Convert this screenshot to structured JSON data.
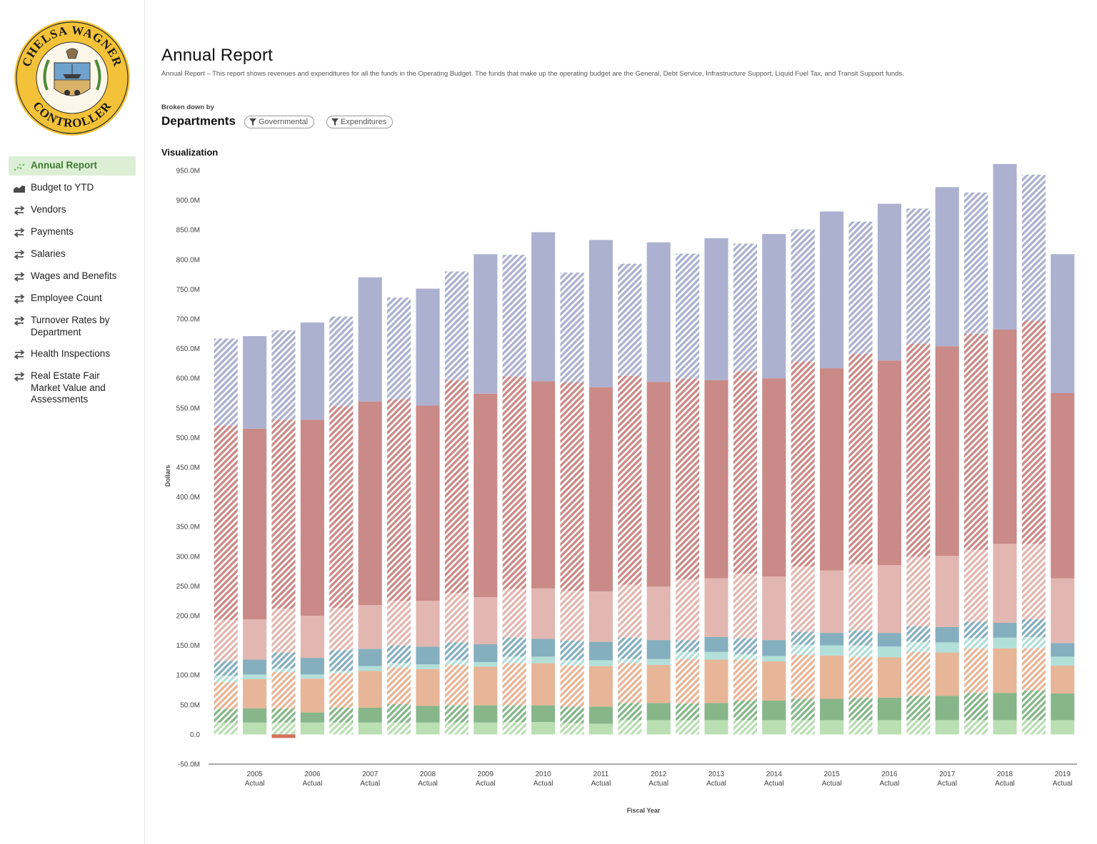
{
  "logo": {
    "top_text": "CHELSA WAGNER",
    "bottom_text": "CONTROLLER"
  },
  "nav": {
    "items": [
      {
        "label": "Annual Report",
        "icon": "scatter-dots-icon",
        "active": true
      },
      {
        "label": "Budget to YTD",
        "icon": "area-chart-icon",
        "active": false
      },
      {
        "label": "Vendors",
        "icon": "swap-arrows-icon",
        "active": false
      },
      {
        "label": "Payments",
        "icon": "swap-arrows-icon",
        "active": false
      },
      {
        "label": "Salaries",
        "icon": "swap-arrows-icon",
        "active": false
      },
      {
        "label": "Wages and Benefits",
        "icon": "swap-arrows-icon",
        "active": false
      },
      {
        "label": "Employee Count",
        "icon": "swap-arrows-icon",
        "active": false
      },
      {
        "label": "Turnover Rates by Department",
        "icon": "swap-arrows-icon",
        "active": false
      },
      {
        "label": "Health Inspections",
        "icon": "swap-arrows-icon",
        "active": false
      },
      {
        "label": "Real Estate Fair Market Value and Assessments",
        "icon": "swap-arrows-icon",
        "active": false
      }
    ]
  },
  "page": {
    "title": "Annual Report",
    "description": "Annual Report – This report shows revenues and expenditures for all the funds in the Operating Budget. The funds that make up the operating budget are the General, Debt Service, Infrastructure Support, Liquid Fuel Tax, and Transit Support funds.",
    "broken_down_label": "Broken down by",
    "breakdown": "Departments",
    "filters": [
      "Governmental",
      "Expenditures"
    ],
    "viz_label": "Visualization"
  },
  "colors": {
    "lightgreen": "#b9dfb2",
    "darkgreen": "#86b689",
    "peach": "#e7b597",
    "lightteal": "#b3dfd9",
    "teal": "#85afbf",
    "pink": "#e2b7b1",
    "red": "#c98a88",
    "slate": "#adb1d0",
    "accent_red": "#d4715a"
  },
  "chart_data": {
    "type": "bar",
    "stacked": true,
    "title": "Visualization",
    "xlabel": "Fiscal Year",
    "ylabel": "Dollars",
    "ylim": [
      -50,
      950
    ],
    "yticks": [
      "950.0M",
      "900.0M",
      "850.0M",
      "800.0M",
      "750.0M",
      "700.0M",
      "650.0M",
      "600.0M",
      "550.0M",
      "500.0M",
      "450.0M",
      "400.0M",
      "350.0M",
      "300.0M",
      "250.0M",
      "200.0M",
      "150.0M",
      "100.0M",
      "50.0M",
      "0.0",
      "-50.0M"
    ],
    "ytick_values": [
      950,
      900,
      850,
      800,
      750,
      700,
      650,
      600,
      550,
      500,
      450,
      400,
      350,
      300,
      250,
      200,
      150,
      100,
      50,
      0,
      -50
    ],
    "units": "millions of dollars",
    "x_ticks": [
      {
        "year": "2005",
        "sub": "Actual"
      },
      {
        "year": "2006",
        "sub": "Actual"
      },
      {
        "year": "2007",
        "sub": "Actual"
      },
      {
        "year": "2008",
        "sub": "Actual"
      },
      {
        "year": "2009",
        "sub": "Actual"
      },
      {
        "year": "2010",
        "sub": "Actual"
      },
      {
        "year": "2011",
        "sub": "Actual"
      },
      {
        "year": "2012",
        "sub": "Actual"
      },
      {
        "year": "2013",
        "sub": "Actual"
      },
      {
        "year": "2014",
        "sub": "Actual"
      },
      {
        "year": "2015",
        "sub": "Actual"
      },
      {
        "year": "2016",
        "sub": "Actual"
      },
      {
        "year": "2017",
        "sub": "Actual"
      },
      {
        "year": "2018",
        "sub": "Actual"
      },
      {
        "year": "2019",
        "sub": "Actual"
      }
    ],
    "series_colors": [
      "lightgreen",
      "darkgreen",
      "peach",
      "lightteal",
      "teal",
      "pink",
      "red",
      "slate"
    ],
    "bars": [
      {
        "tops": [
          20,
          43,
          88,
          99,
          124,
          193,
          520,
          667
        ],
        "hatched": true,
        "neg": 0
      },
      {
        "tops": [
          20,
          44,
          93,
          101,
          126,
          194,
          515,
          671
        ],
        "hatched": false,
        "neg": 0
      },
      {
        "tops": [
          20,
          44,
          105,
          111,
          138,
          212,
          530,
          681
        ],
        "hatched": true,
        "neg": -6
      },
      {
        "tops": [
          20,
          37,
          94,
          101,
          129,
          200,
          530,
          694
        ],
        "hatched": false,
        "neg": 0
      },
      {
        "tops": [
          20,
          45,
          103,
          107,
          142,
          213,
          553,
          704
        ],
        "hatched": true,
        "neg": 0
      },
      {
        "tops": [
          20,
          45,
          107,
          115,
          144,
          218,
          561,
          770
        ],
        "hatched": false,
        "neg": 0
      },
      {
        "tops": [
          20,
          51,
          113,
          120,
          150,
          225,
          565,
          736
        ],
        "hatched": true,
        "neg": 0
      },
      {
        "tops": [
          20,
          48,
          110,
          118,
          148,
          225,
          554,
          751
        ],
        "hatched": false,
        "neg": 0
      },
      {
        "tops": [
          20,
          49,
          117,
          125,
          155,
          238,
          597,
          780
        ],
        "hatched": true,
        "neg": 0
      },
      {
        "tops": [
          20,
          49,
          114,
          122,
          152,
          231,
          574,
          809
        ],
        "hatched": false,
        "neg": 0
      },
      {
        "tops": [
          21,
          49,
          120,
          131,
          163,
          245,
          603,
          808
        ],
        "hatched": true,
        "neg": 0
      },
      {
        "tops": [
          21,
          49,
          120,
          131,
          161,
          246,
          595,
          846
        ],
        "hatched": false,
        "neg": 0
      },
      {
        "tops": [
          19,
          47,
          116,
          125,
          158,
          242,
          593,
          778
        ],
        "hatched": true,
        "neg": 0
      },
      {
        "tops": [
          18,
          47,
          115,
          125,
          156,
          241,
          585,
          833
        ],
        "hatched": false,
        "neg": 0
      },
      {
        "tops": [
          24,
          53,
          120,
          127,
          163,
          252,
          604,
          793
        ],
        "hatched": true,
        "neg": 0
      },
      {
        "tops": [
          24,
          53,
          117,
          127,
          159,
          249,
          594,
          829
        ],
        "hatched": false,
        "neg": 0
      },
      {
        "tops": [
          24,
          52,
          127,
          139,
          159,
          261,
          599,
          810
        ],
        "hatched": true,
        "neg": 0
      },
      {
        "tops": [
          24,
          53,
          126,
          139,
          164,
          263,
          597,
          836
        ],
        "hatched": false,
        "neg": 0
      },
      {
        "tops": [
          24,
          57,
          126,
          135,
          162,
          271,
          612,
          827
        ],
        "hatched": true,
        "neg": 0
      },
      {
        "tops": [
          24,
          57,
          123,
          132,
          159,
          266,
          600,
          843
        ],
        "hatched": false,
        "neg": 0
      },
      {
        "tops": [
          24,
          60,
          134,
          151,
          173,
          283,
          628,
          851
        ],
        "hatched": true,
        "neg": 0
      },
      {
        "tops": [
          24,
          60,
          133,
          150,
          171,
          276,
          617,
          881
        ],
        "hatched": false,
        "neg": 0
      },
      {
        "tops": [
          24,
          62,
          130,
          150,
          175,
          287,
          641,
          864
        ],
        "hatched": true,
        "neg": 0
      },
      {
        "tops": [
          24,
          62,
          130,
          148,
          171,
          285,
          630,
          894
        ],
        "hatched": false,
        "neg": 0
      },
      {
        "tops": [
          24,
          65,
          139,
          156,
          182,
          299,
          658,
          886
        ],
        "hatched": true,
        "neg": 0
      },
      {
        "tops": [
          24,
          65,
          138,
          155,
          181,
          301,
          654,
          922
        ],
        "hatched": false,
        "neg": 0
      },
      {
        "tops": [
          24,
          70,
          145,
          162,
          190,
          311,
          675,
          913
        ],
        "hatched": true,
        "neg": 0
      },
      {
        "tops": [
          24,
          70,
          145,
          163,
          188,
          321,
          682,
          961
        ],
        "hatched": false,
        "neg": 0
      },
      {
        "tops": [
          24,
          74,
          145,
          164,
          194,
          321,
          697,
          943
        ],
        "hatched": true,
        "neg": 0
      },
      {
        "tops": [
          24,
          69,
          116,
          131,
          154,
          263,
          575,
          809
        ],
        "hatched": false,
        "neg": 0
      }
    ]
  }
}
